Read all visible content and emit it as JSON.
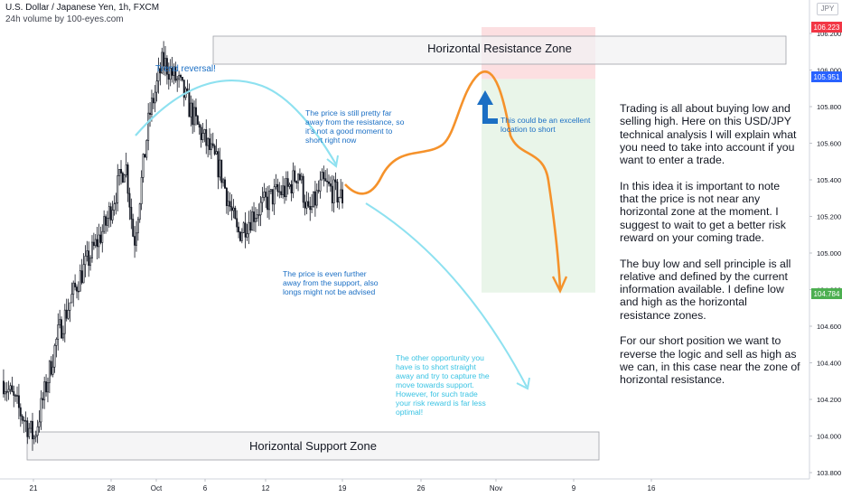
{
  "header": {
    "title": "U.S. Dollar / Japanese Yen, 1h, FXCM",
    "subtitle": "24h volume by 100-eyes.com",
    "currency": "JPY"
  },
  "price_badges": {
    "zone_top": "106.223",
    "current": "105.951",
    "zone_bottom": "104.784"
  },
  "annotations": {
    "resistance_zone": "Horizontal Resistance Zone",
    "support_zone": "Horizontal Support Zone",
    "trend_reversal": "Trend reversal!",
    "far_from_resistance": "The price is still pretty far\naway from the resistance, so\nit's not a good moment to\nshort right now",
    "excellent_location": "This could be an excellent\nlocation to short",
    "far_from_support": "The price is even further\naway from the support, also\nlongs might not be advised",
    "other_opportunity": "The other opportunity you\nhave is to short straight\naway and try to capture the\nmove towards support.\nHowever, for such trade\nyour risk reward is far less\noptimal!"
  },
  "idea_text": {
    "p1": "Trading is all about buying low and selling high. Here on this USD/JPY technical analysis I will explain what you need to take into account if you want to enter a trade.",
    "p2": "In this idea it is important to note that the price is not near any horizontal zone at the moment. I suggest to wait to get a better risk reward on your coming trade.",
    "p3": "The buy low and sell principle is all relative and defined by the current information available. I define low and high as the horizontal resistance zones.",
    "p4": "For our short position we want to reverse the logic and sell as high as we can, in this case near the zone of horizontal resistance."
  },
  "colors": {
    "up": "#ffffff",
    "down": "#131722",
    "zone_fill": "#f1f1f3",
    "zone_border": "#9ea1a8",
    "stop_fill": "#fbd9dc",
    "target_fill": "#e7f4e7",
    "orange": "#f5922b",
    "cyan": "#8ee1f0",
    "blue": "#1b6fc4",
    "badge_red": "#f23645",
    "badge_blue": "#2962ff",
    "badge_green": "#4caf50"
  },
  "chart_data": {
    "type": "candlestick",
    "symbol": "USD/JPY",
    "interval": "1h",
    "ylim": [
      103.8,
      106.25
    ],
    "y_ticks": [
      "106.200",
      "106.000",
      "105.800",
      "105.600",
      "105.400",
      "105.200",
      "105.000",
      "104.800",
      "104.600",
      "104.400",
      "104.200",
      "104.000",
      "103.800"
    ],
    "x_ticks": [
      "21",
      "28",
      "Oct",
      "6",
      "12",
      "19",
      "26",
      "Nov",
      "9",
      "16"
    ],
    "resistance_zone": [
      106.02,
      106.16
    ],
    "support_zone": [
      103.99,
      104.05
    ],
    "trade": {
      "entry": 105.951,
      "stop": 106.223,
      "target": 104.784
    },
    "path": [
      [
        104.3,
        0.0
      ],
      [
        103.99,
        0.09
      ],
      [
        104.55,
        0.16
      ],
      [
        104.85,
        0.22
      ],
      [
        105.15,
        0.3
      ],
      [
        105.5,
        0.36
      ],
      [
        105.05,
        0.385
      ],
      [
        105.75,
        0.43
      ],
      [
        106.05,
        0.47
      ],
      [
        105.92,
        0.52
      ],
      [
        105.7,
        0.57
      ],
      [
        105.45,
        0.64
      ],
      [
        105.1,
        0.69
      ],
      [
        105.22,
        0.74
      ],
      [
        105.32,
        0.8
      ],
      [
        105.35,
        0.84
      ],
      [
        105.45,
        0.87
      ],
      [
        105.2,
        0.9
      ],
      [
        105.38,
        0.94
      ],
      [
        105.3,
        1.0
      ]
    ],
    "candle_count": 200
  }
}
